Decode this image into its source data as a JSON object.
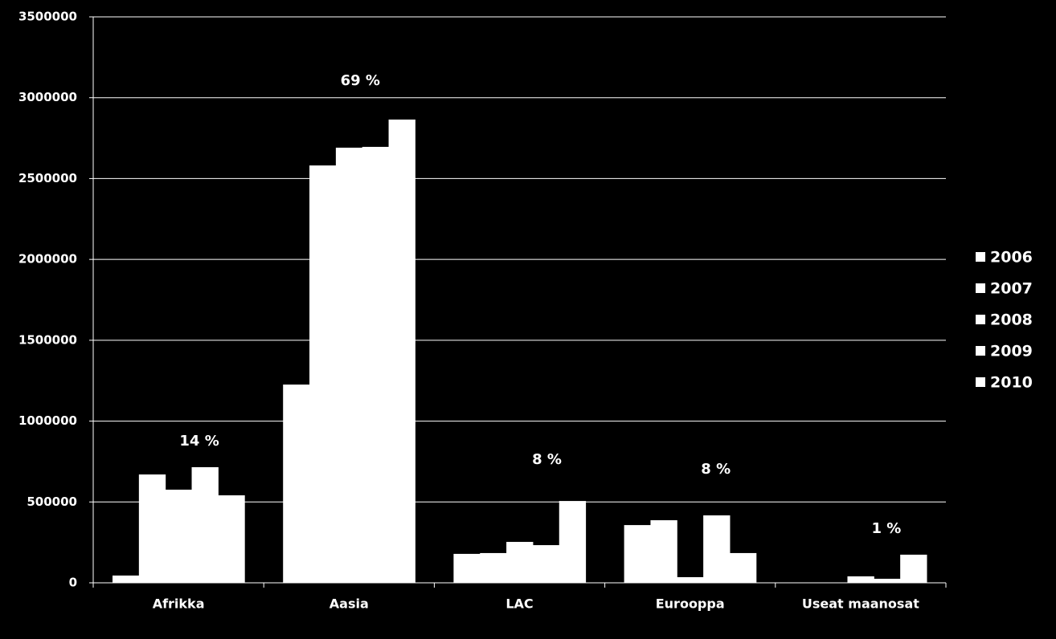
{
  "chart_data": {
    "type": "bar",
    "categories": [
      "Afrikka",
      "Aasia",
      "LAC",
      "Eurooppa",
      "Useat maanosat"
    ],
    "series": [
      {
        "name": "2006",
        "color": "#ffffff",
        "values": [
          45000,
          1226000,
          179000,
          357000,
          0
        ]
      },
      {
        "name": "2007",
        "color": "#ffffff",
        "values": [
          670000,
          2581000,
          184000,
          387000,
          0
        ]
      },
      {
        "name": "2008",
        "color": "#ffffff",
        "values": [
          576000,
          2691000,
          253000,
          35000,
          40000
        ]
      },
      {
        "name": "2009",
        "color": "#ffffff",
        "values": [
          715000,
          2696000,
          233000,
          417000,
          25000
        ]
      },
      {
        "name": "2010",
        "color": "#ffffff",
        "values": [
          541000,
          2865000,
          506000,
          184000,
          174000
        ]
      }
    ],
    "annotations": [
      "14 %",
      "69 %",
      "8 %",
      "8 %",
      "1 %"
    ],
    "ylim": [
      0,
      3500000
    ],
    "yticks": [
      0,
      500000,
      1000000,
      1500000,
      2000000,
      2500000,
      3000000,
      3500000
    ],
    "grid": true,
    "legend": "right"
  }
}
